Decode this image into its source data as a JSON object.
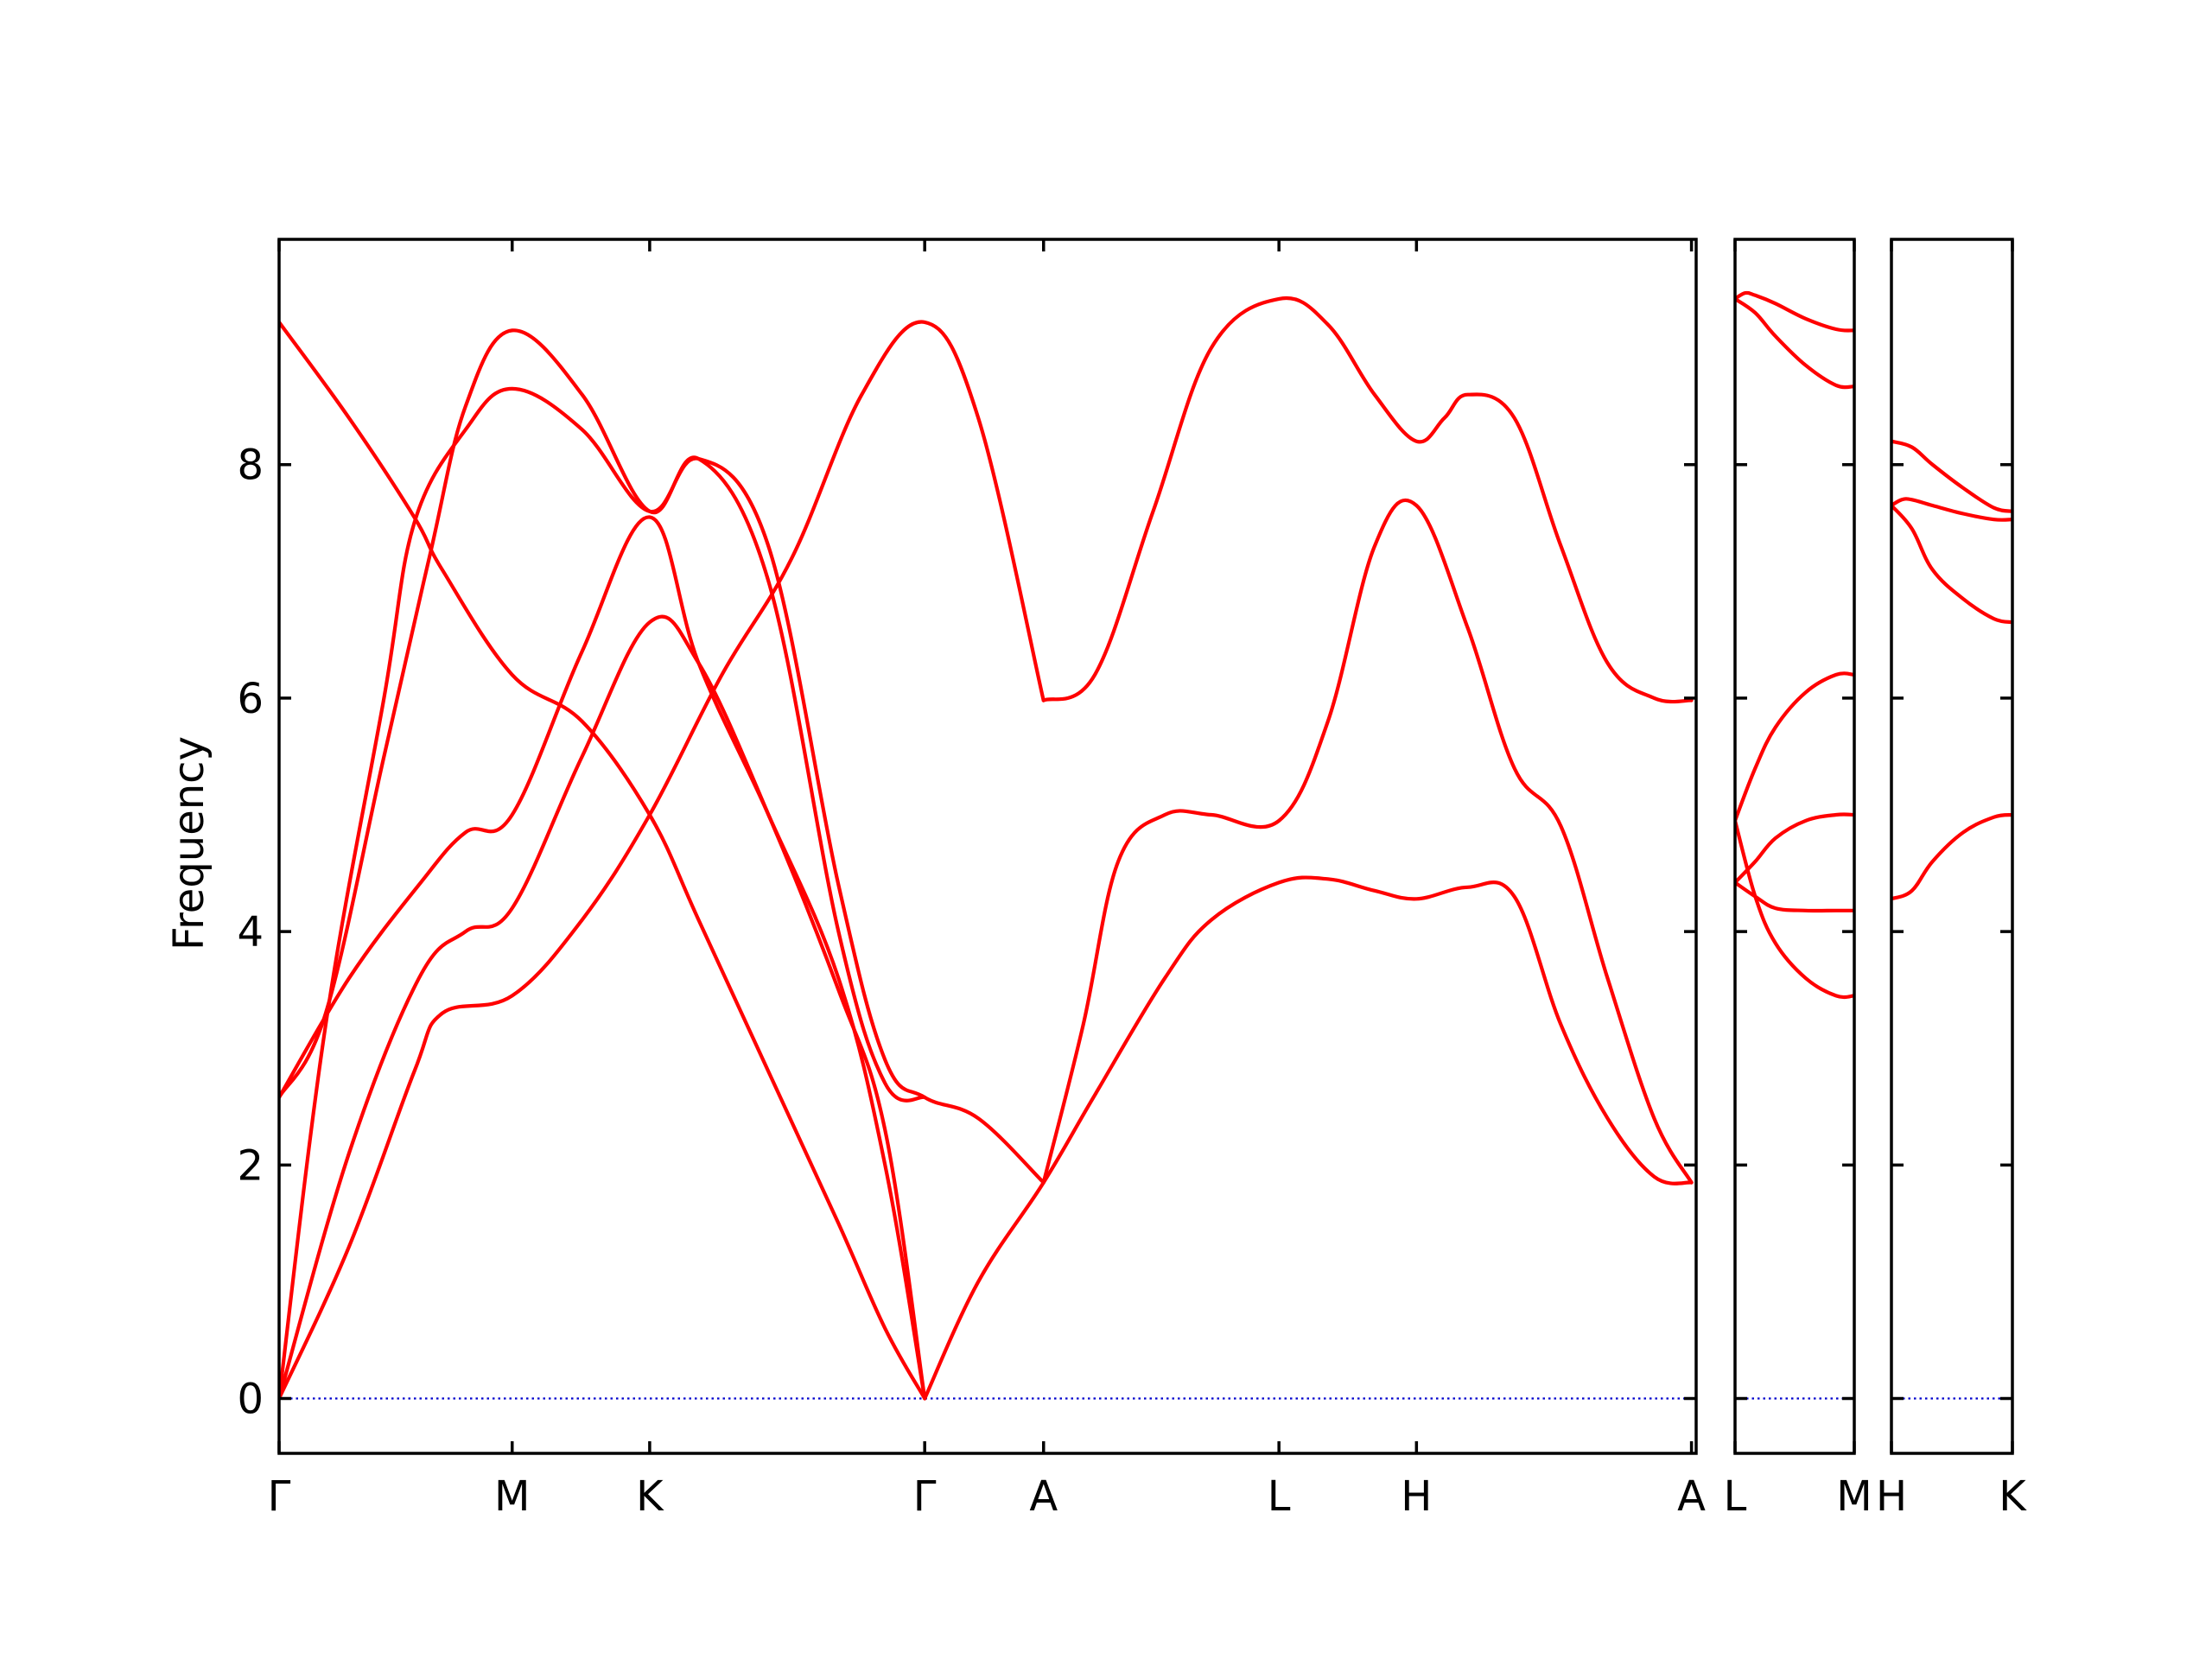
{
  "chart_data": {
    "type": "line",
    "title": "",
    "ylabel": "Frequency",
    "xlabel": "",
    "ylim": [
      -0.47,
      9.93
    ],
    "yticks": [
      0,
      2,
      4,
      6,
      8
    ],
    "grid": false,
    "legend": "none",
    "colors": {
      "band": "#ff0000",
      "zero_line": "#0000cc",
      "axis": "#000000"
    },
    "panels": [
      {
        "xlim": [
          0,
          6.08
        ],
        "ticks": [
          {
            "label": "Γ",
            "x": 0
          },
          {
            "label": "M",
            "x": 1.0
          },
          {
            "label": "K",
            "x": 1.59
          },
          {
            "label": "Γ",
            "x": 2.77
          },
          {
            "label": "A",
            "x": 3.28
          },
          {
            "label": "L",
            "x": 4.29
          },
          {
            "label": "H",
            "x": 4.88
          },
          {
            "label": "A",
            "x": 6.06
          }
        ],
        "bands": [
          {
            "x": [
              0,
              0.3,
              0.58,
              0.7,
              1.0,
              1.3,
              1.59,
              1.9,
              2.2,
              2.5,
              2.77,
              3.0,
              3.28
            ],
            "y": [
              0,
              1.3,
              2.8,
              3.3,
              3.45,
              4.1,
              5.0,
              6.2,
              7.2,
              8.6,
              9.22,
              8.4,
              5.98
            ]
          },
          {
            "x": [
              0,
              0.3,
              0.6,
              0.8,
              1.0,
              1.3,
              1.59,
              1.8,
              2.1,
              2.4,
              2.6,
              2.77
            ],
            "y": [
              0,
              2.1,
              3.6,
              4.0,
              4.2,
              5.5,
              6.65,
              6.3,
              5.0,
              3.5,
              2.3,
              0
            ]
          },
          {
            "x": [
              0,
              0.3,
              0.6,
              0.8,
              1.0,
              1.3,
              1.59,
              1.8,
              2.1,
              2.4,
              2.6,
              2.77
            ],
            "y": [
              2.58,
              3.6,
              4.4,
              4.85,
              5.0,
              6.4,
              7.55,
              6.3,
              5.0,
              3.6,
              2.0,
              0
            ]
          },
          {
            "x": [
              0,
              0.3,
              0.58,
              0.7,
              1.0,
              1.3,
              1.59,
              1.8,
              2.1,
              2.4,
              2.6,
              2.77
            ],
            "y": [
              9.22,
              8.4,
              7.55,
              7.1,
              6.2,
              5.8,
              5.0,
              4.1,
              2.8,
              1.5,
              0.6,
              0
            ]
          },
          {
            "x": [
              0,
              0.2,
              0.45,
              0.58,
              0.8,
              1.0,
              1.3,
              1.59,
              1.8,
              2.1,
              2.4,
              2.6,
              2.77,
              3.0,
              3.28
            ],
            "y": [
              0,
              3.2,
              6.0,
              7.5,
              8.3,
              8.65,
              8.3,
              7.6,
              8.05,
              7.3,
              4.4,
              2.9,
              2.58,
              2.4,
              1.85
            ]
          },
          {
            "x": [
              0,
              0.2,
              0.45,
              0.65,
              0.8,
              1.0,
              1.3,
              1.59,
              1.8,
              2.1,
              2.4,
              2.6,
              2.77
            ],
            "y": [
              2.58,
              3.3,
              5.5,
              7.25,
              8.5,
              9.15,
              8.6,
              7.6,
              8.05,
              7.0,
              4.0,
              2.7,
              2.58
            ]
          },
          {
            "x": [
              2.77,
              3.0,
              3.28,
              3.5,
              3.8,
              4.0,
              4.29,
              4.5,
              4.7,
              4.88,
              5.1,
              5.3,
              5.5,
              5.7,
              5.9,
              6.06
            ],
            "y": [
              0,
              1.0,
              1.85,
              2.6,
              3.6,
              4.1,
              4.42,
              4.45,
              4.35,
              4.28,
              4.38,
              4.3,
              3.2,
              2.4,
              1.9,
              1.85
            ]
          },
          {
            "x": [
              3.28,
              3.45,
              3.6,
              3.8,
              4.0,
              4.29,
              4.5,
              4.7,
              4.88,
              5.1,
              5.3,
              5.5,
              5.7,
              5.9,
              6.06
            ],
            "y": [
              1.85,
              3.2,
              4.6,
              5.0,
              5.0,
              4.95,
              5.8,
              7.3,
              7.65,
              6.6,
              5.4,
              4.9,
              3.6,
              2.4,
              1.85
            ]
          },
          {
            "x": [
              3.28,
              3.5,
              3.75,
              4.0,
              4.29,
              4.5,
              4.7,
              4.88,
              5.0,
              5.1,
              5.3,
              5.5,
              5.7,
              5.9,
              6.06
            ],
            "y": [
              5.98,
              6.2,
              7.6,
              9.0,
              9.42,
              9.2,
              8.6,
              8.2,
              8.4,
              8.6,
              8.4,
              7.3,
              6.3,
              6.0,
              5.98
            ]
          }
        ],
        "zero_line": true
      },
      {
        "xlim": [
          0,
          0.59
        ],
        "ticks": [
          {
            "label": "L",
            "x": 0
          },
          {
            "label": "M",
            "x": 0.59
          }
        ],
        "bands": [
          {
            "x": [
              0,
              0.1,
              0.2,
              0.35,
              0.5,
              0.59
            ],
            "y": [
              4.42,
              4.3,
              4.2,
              4.18,
              4.18,
              4.18
            ]
          },
          {
            "x": [
              0,
              0.1,
              0.2,
              0.35,
              0.5,
              0.59
            ],
            "y": [
              4.95,
              4.3,
              3.9,
              3.6,
              3.45,
              3.45
            ]
          },
          {
            "x": [
              0,
              0.1,
              0.2,
              0.35,
              0.5,
              0.59
            ],
            "y": [
              4.42,
              4.6,
              4.8,
              4.95,
              5.0,
              5.0
            ]
          },
          {
            "x": [
              0,
              0.1,
              0.2,
              0.35,
              0.5,
              0.59
            ],
            "y": [
              4.95,
              5.4,
              5.75,
              6.05,
              6.2,
              6.2
            ]
          },
          {
            "x": [
              0,
              0.1,
              0.2,
              0.35,
              0.5,
              0.59
            ],
            "y": [
              9.42,
              9.3,
              9.1,
              8.85,
              8.68,
              8.67
            ]
          },
          {
            "x": [
              0,
              0.05,
              0.1,
              0.2,
              0.35,
              0.5,
              0.59
            ],
            "y": [
              9.42,
              9.47,
              9.45,
              9.38,
              9.25,
              9.16,
              9.15
            ]
          }
        ],
        "zero_line": true
      },
      {
        "xlim": [
          0,
          0.59
        ],
        "ticks": [
          {
            "label": "H",
            "x": 0
          },
          {
            "label": "K",
            "x": 0.59
          }
        ],
        "bands": [
          {
            "x": [
              0,
              0.1,
              0.2,
              0.35,
              0.5,
              0.59
            ],
            "y": [
              4.28,
              4.35,
              4.6,
              4.85,
              4.98,
              5.0
            ]
          },
          {
            "x": [
              0,
              0.1,
              0.2,
              0.35,
              0.5,
              0.59
            ],
            "y": [
              7.65,
              7.45,
              7.1,
              6.85,
              6.68,
              6.65
            ]
          },
          {
            "x": [
              0,
              0.05,
              0.1,
              0.2,
              0.35,
              0.5,
              0.59
            ],
            "y": [
              7.65,
              7.7,
              7.7,
              7.65,
              7.58,
              7.53,
              7.53
            ]
          },
          {
            "x": [
              0,
              0.1,
              0.2,
              0.35,
              0.5,
              0.59
            ],
            "y": [
              8.2,
              8.15,
              8.0,
              7.8,
              7.63,
              7.6
            ]
          }
        ],
        "zero_line": true
      }
    ]
  }
}
